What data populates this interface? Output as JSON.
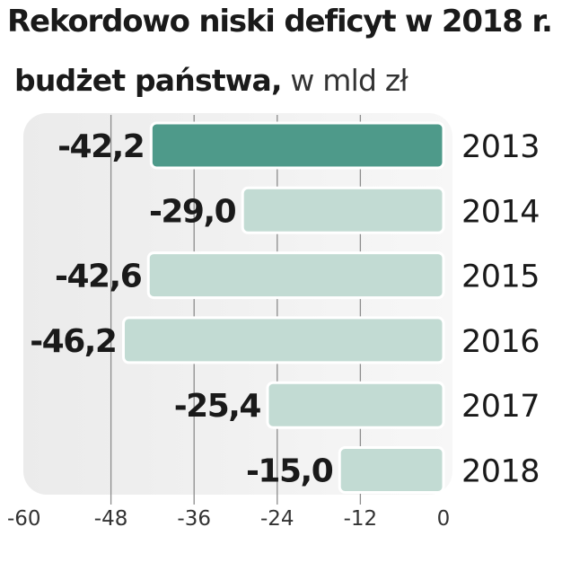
{
  "title": "Rekordowo niski deficyt w 2018 r.",
  "subtitle_main": "budżet państwa,",
  "subtitle_unit": "w mld zł",
  "colors": {
    "highlight": "#4e9a8a",
    "bar": "#c2dbd3",
    "panel": "#efefef",
    "grid": "#8c8c8c",
    "text": "#1a1a1a"
  },
  "chart_data": {
    "type": "bar",
    "orientation": "horizontal",
    "categories": [
      "2013",
      "2014",
      "2015",
      "2016",
      "2017",
      "2018"
    ],
    "values": [
      -42.2,
      -29.0,
      -42.6,
      -46.2,
      -25.4,
      -15.0
    ],
    "value_labels": [
      "-42,2",
      "-29,0",
      "-42,6",
      "-46,2",
      "-25,4",
      "-15,0"
    ],
    "highlight_category": "2013",
    "xlim": [
      -60,
      0
    ],
    "xticks": [
      -60,
      -48,
      -36,
      -24,
      -12,
      0
    ],
    "grid": true,
    "legend": "none"
  }
}
